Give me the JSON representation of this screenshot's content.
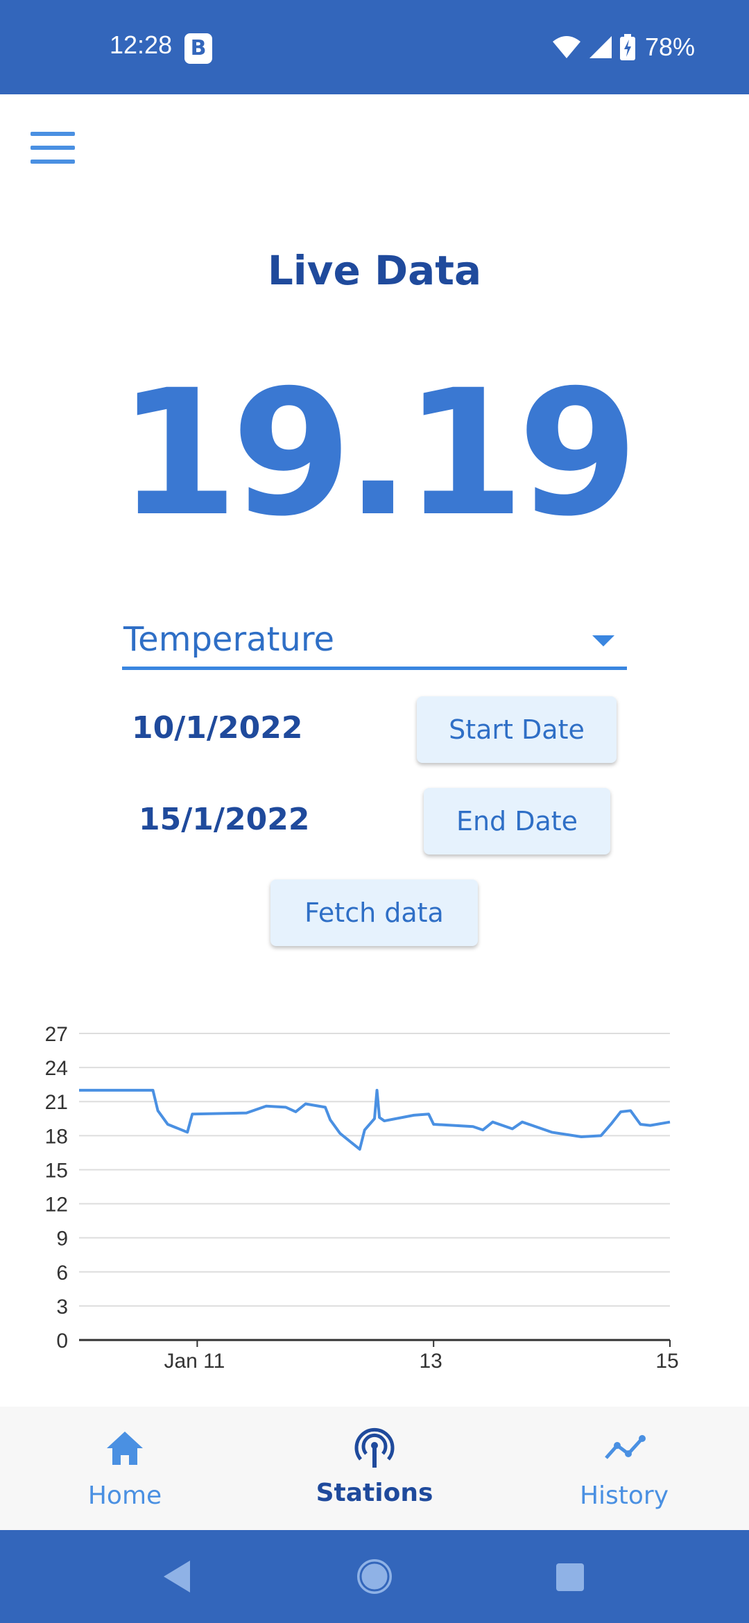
{
  "status_bar": {
    "time": "12:28",
    "notification_badge": "B",
    "battery": "78%",
    "icons": [
      "wifi-icon",
      "signal-icon",
      "battery-charging-icon"
    ]
  },
  "header": {
    "menu_icon": "hamburger-menu-icon",
    "title": "Live Data"
  },
  "live": {
    "value": "19.19"
  },
  "sensor_select": {
    "selected": "Temperature"
  },
  "dates": {
    "start_value": "10/1/2022",
    "start_button": "Start Date",
    "end_value": "15/1/2022",
    "end_button": "End Date",
    "fetch_button": "Fetch data"
  },
  "chart_data": {
    "type": "line",
    "x_tick_labels": [
      "Jan 11",
      "13",
      "15"
    ],
    "y_tick_labels": [
      "0",
      "3",
      "6",
      "9",
      "12",
      "15",
      "18",
      "21",
      "24",
      "27"
    ],
    "ylim": [
      0,
      27
    ],
    "xlim": [
      "2022-01-10",
      "2022-01-15"
    ],
    "grid": true,
    "color": "#4a90e2",
    "series": [
      {
        "x": [
          "2022-01-10 00:00",
          "2022-01-10 15:00",
          "2022-01-10 16:00",
          "2022-01-10 18:00",
          "2022-01-10 22:00",
          "2022-01-10 23:00",
          "2022-01-11 10:00",
          "2022-01-11 14:00",
          "2022-01-11 18:00",
          "2022-01-11 20:00",
          "2022-01-11 22:00",
          "2022-01-12 02:00",
          "2022-01-12 03:00",
          "2022-01-12 05:00",
          "2022-01-12 09:00",
          "2022-01-12 10:00",
          "2022-01-12 12:00",
          "2022-01-12 12:30",
          "2022-01-12 13:00",
          "2022-01-12 14:00",
          "2022-01-12 20:00",
          "2022-01-12 23:00",
          "2022-01-13 00:00",
          "2022-01-13 08:00",
          "2022-01-13 10:00",
          "2022-01-13 12:00",
          "2022-01-13 16:00",
          "2022-01-13 18:00",
          "2022-01-14 00:00",
          "2022-01-14 06:00",
          "2022-01-14 10:00",
          "2022-01-14 12:00",
          "2022-01-14 14:00",
          "2022-01-14 16:00",
          "2022-01-14 18:00",
          "2022-01-14 20:00",
          "2022-01-15 00:00"
        ],
        "y": [
          22.0,
          22.0,
          20.2,
          19.0,
          18.3,
          19.9,
          20.0,
          20.6,
          20.5,
          20.1,
          20.8,
          20.5,
          19.4,
          18.2,
          16.8,
          18.5,
          19.5,
          22.0,
          19.6,
          19.3,
          19.8,
          19.9,
          19.0,
          18.8,
          18.5,
          19.2,
          18.6,
          19.2,
          18.3,
          17.9,
          18.0,
          19.0,
          20.1,
          20.2,
          19.0,
          18.9,
          19.2
        ]
      }
    ]
  },
  "bottom_nav": {
    "items": [
      {
        "label": "Home",
        "icon": "home-icon",
        "active": false
      },
      {
        "label": "Stations",
        "icon": "antenna-icon",
        "active": true
      },
      {
        "label": "History",
        "icon": "trend-line-icon",
        "active": false
      }
    ]
  },
  "system_nav": {
    "icons": [
      "back-icon",
      "home-circle-icon",
      "recents-square-icon"
    ]
  }
}
